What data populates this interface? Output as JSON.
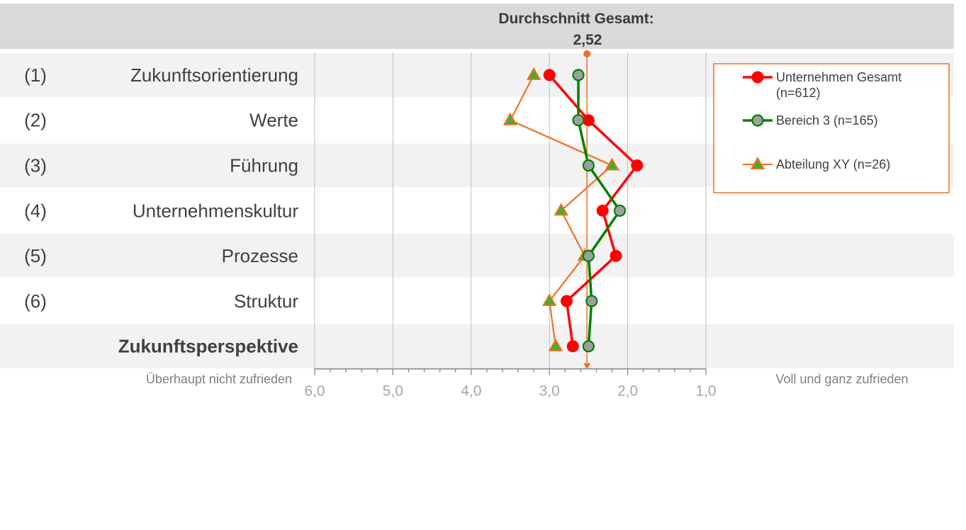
{
  "chart_data": {
    "type": "line",
    "orientation": "horizontal-values-vertical-categories",
    "header": {
      "title": "Durchschnitt Gesamt:",
      "value": "2,52"
    },
    "average_line_value": 2.52,
    "rows": [
      {
        "number": "(1)",
        "label": "Zukunftsorientierung",
        "bold": false,
        "shaded": true
      },
      {
        "number": "(2)",
        "label": "Werte",
        "bold": false,
        "shaded": false
      },
      {
        "number": "(3)",
        "label": "Führung",
        "bold": false,
        "shaded": true
      },
      {
        "number": "(4)",
        "label": "Unternehmenskultur",
        "bold": false,
        "shaded": false
      },
      {
        "number": "(5)",
        "label": "Prozesse",
        "bold": false,
        "shaded": true
      },
      {
        "number": "(6)",
        "label": "Struktur",
        "bold": false,
        "shaded": false
      },
      {
        "number": "",
        "label": "Zukunftsperspektive",
        "bold": true,
        "shaded": true
      }
    ],
    "x_axis": {
      "min": 1.0,
      "max": 6.0,
      "reversed": true,
      "ticks": [
        6.0,
        5.0,
        4.0,
        3.0,
        2.0,
        1.0
      ],
      "tick_labels": [
        "6,0",
        "5,0",
        "4,0",
        "3,0",
        "2,0",
        "1,0"
      ],
      "left_label": "Überhaupt nicht zufrieden",
      "right_label": "Voll und ganz zufrieden"
    },
    "series": [
      {
        "name": "Unternehmen Gesamt (n=612)",
        "legend_lines": [
          "Unternehmen Gesamt",
          "(n=612)"
        ],
        "color": "#ff0000",
        "marker": "circle-filled",
        "values": [
          3.0,
          2.5,
          1.88,
          2.32,
          2.15,
          2.78,
          2.7
        ]
      },
      {
        "name": "Bereich 3 (n=165)",
        "legend_lines": [
          "Bereich 3 (n=165)"
        ],
        "color": "#008000",
        "marker_fill": "#9e9e9e",
        "marker": "circle-outlined",
        "values": [
          2.63,
          2.63,
          2.5,
          2.1,
          2.5,
          2.46,
          2.5
        ]
      },
      {
        "name": "Abteilung XY (n=26)",
        "legend_lines": [
          "Abteilung XY (n=26)"
        ],
        "color": "#f07020",
        "marker_fill": "#40b030",
        "marker": "triangle",
        "values": [
          3.2,
          3.5,
          2.2,
          2.85,
          2.55,
          3.0,
          2.92
        ]
      }
    ],
    "grid": true,
    "legend_position": "top-right",
    "colors": {
      "header_bg": "#d9d9d9",
      "row_shade": "#f2f2f2",
      "gridline": "#bfbfbf",
      "axis": "#808080",
      "average_line": "#f07020",
      "legend_border": "#f07020"
    }
  }
}
